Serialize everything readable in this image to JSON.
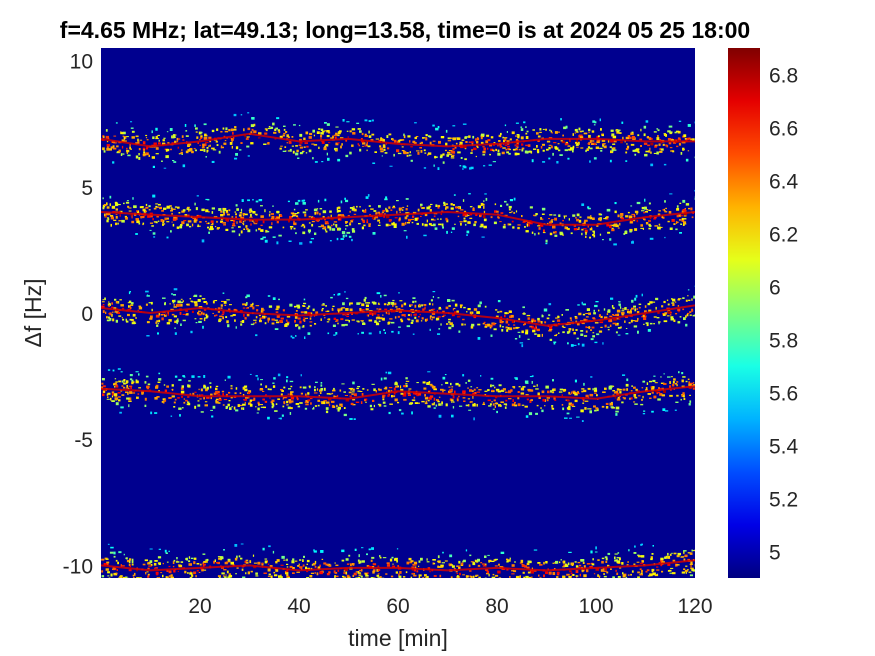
{
  "chart_data": {
    "type": "heatmap",
    "title": "f=4.65 MHz;  lat=49.13; long=13.58, time=0 is at 2024 05 25 18:00",
    "xlabel": "time [min]",
    "ylabel": "Δf [Hz]",
    "xlim": [
      0,
      120
    ],
    "ylim": [
      -10.5,
      10.5
    ],
    "x_ticks": [
      20,
      40,
      60,
      80,
      100,
      120
    ],
    "y_ticks": [
      10,
      5,
      0,
      -5,
      -10
    ],
    "colorbar": {
      "range": [
        4.9,
        6.9
      ],
      "ticks": [
        6.8,
        6.6,
        6.4,
        6.2,
        6,
        5.8,
        5.6,
        5.4,
        5.2,
        5
      ],
      "colormap": "jet"
    },
    "background_color": "#00008f",
    "traces": [
      {
        "name": "",
        "base_df": 6.8,
        "points": [
          [
            0,
            6.9
          ],
          [
            10,
            6.6
          ],
          [
            20,
            6.8
          ],
          [
            30,
            7.1
          ],
          [
            40,
            6.8
          ],
          [
            50,
            6.9
          ],
          [
            60,
            6.7
          ],
          [
            70,
            6.6
          ],
          [
            80,
            6.7
          ],
          [
            90,
            6.9
          ],
          [
            100,
            6.9
          ],
          [
            110,
            6.8
          ],
          [
            120,
            6.8
          ]
        ]
      },
      {
        "name": "",
        "base_df": 3.9,
        "points": [
          [
            0,
            4.0
          ],
          [
            10,
            3.9
          ],
          [
            20,
            3.8
          ],
          [
            30,
            3.7
          ],
          [
            40,
            3.7
          ],
          [
            50,
            3.8
          ],
          [
            60,
            3.9
          ],
          [
            70,
            4.0
          ],
          [
            80,
            3.9
          ],
          [
            90,
            3.5
          ],
          [
            100,
            3.5
          ],
          [
            110,
            3.8
          ],
          [
            120,
            4.0
          ]
        ]
      },
      {
        "name": "",
        "base_df": 0.1,
        "points": [
          [
            0,
            0.2
          ],
          [
            10,
            0.0
          ],
          [
            20,
            0.2
          ],
          [
            30,
            0.0
          ],
          [
            40,
            -0.1
          ],
          [
            50,
            0.0
          ],
          [
            60,
            0.1
          ],
          [
            70,
            0.0
          ],
          [
            80,
            -0.2
          ],
          [
            90,
            -0.5
          ],
          [
            100,
            -0.3
          ],
          [
            110,
            0.0
          ],
          [
            120,
            0.3
          ]
        ]
      },
      {
        "name": "",
        "base_df": -3.3,
        "points": [
          [
            0,
            -3.0
          ],
          [
            10,
            -3.1
          ],
          [
            20,
            -3.3
          ],
          [
            30,
            -3.3
          ],
          [
            40,
            -3.3
          ],
          [
            50,
            -3.4
          ],
          [
            60,
            -3.1
          ],
          [
            70,
            -3.2
          ],
          [
            80,
            -3.3
          ],
          [
            90,
            -3.3
          ],
          [
            100,
            -3.4
          ],
          [
            110,
            -3.1
          ],
          [
            120,
            -2.9
          ]
        ]
      },
      {
        "name": "",
        "base_df": -10.0,
        "points": [
          [
            0,
            -10.0
          ],
          [
            10,
            -10.2
          ],
          [
            20,
            -10.1
          ],
          [
            30,
            -10.0
          ],
          [
            40,
            -10.2
          ],
          [
            50,
            -10.1
          ],
          [
            60,
            -10.1
          ],
          [
            70,
            -10.2
          ],
          [
            80,
            -10.1
          ],
          [
            90,
            -10.2
          ],
          [
            100,
            -10.1
          ],
          [
            110,
            -10.0
          ],
          [
            120,
            -9.8
          ]
        ]
      }
    ]
  }
}
